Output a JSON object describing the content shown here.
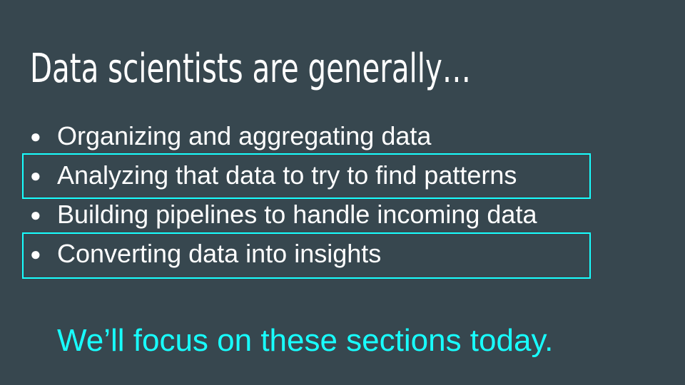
{
  "slide": {
    "title": "Data scientists are generally…",
    "bullet_symbol": "●",
    "bullets": [
      {
        "text": "Organizing and aggregating data",
        "highlighted": false
      },
      {
        "text": "Analyzing that data to try to find patterns",
        "highlighted": true
      },
      {
        "text": "Building pipelines to handle incoming data",
        "highlighted": false
      },
      {
        "text": "Converting data into insights",
        "highlighted": true
      }
    ],
    "footnote": "We’ll focus on these sections today."
  },
  "colors": {
    "background": "#37474f",
    "text": "#ffffff",
    "accent": "#18ffff"
  }
}
